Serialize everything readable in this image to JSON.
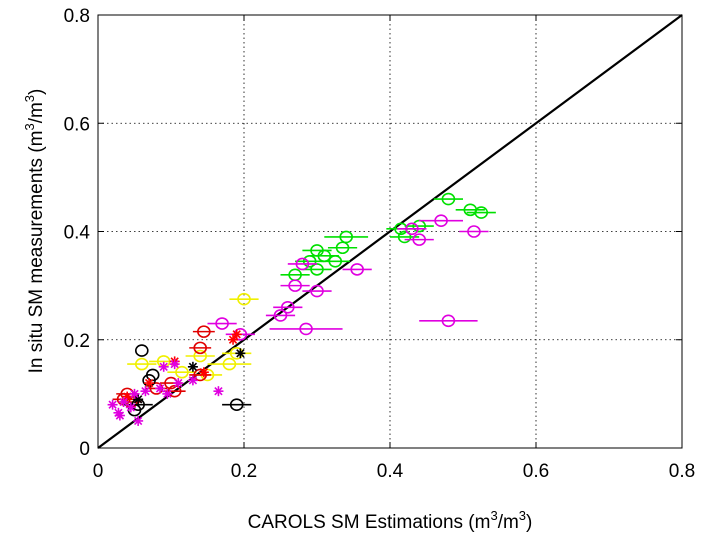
{
  "chart_data": {
    "type": "scatter",
    "title": "",
    "xlabel": {
      "main": "CAROLS SM Estimations (m",
      "sup1": "3",
      "mid": "/m",
      "sup2": "3",
      "end": ")"
    },
    "ylabel": {
      "main": "In situ SM measurements (m",
      "sup1": "3",
      "mid": "/m",
      "sup2": "3",
      "end": ")"
    },
    "xlim": [
      0,
      0.8
    ],
    "ylim": [
      0,
      0.8
    ],
    "xticks": [
      0,
      0.2,
      0.4,
      0.6,
      0.8
    ],
    "yticks": [
      0,
      0.2,
      0.4,
      0.6,
      0.8
    ],
    "xtick_labels": [
      "0",
      "0.2",
      "0.4",
      "0.6",
      "0.8"
    ],
    "ytick_labels": [
      "0",
      "0.2",
      "0.4",
      "0.6",
      "0.8"
    ],
    "grid": true,
    "reference_line": {
      "x": [
        0,
        0.8
      ],
      "y": [
        0,
        0.8
      ],
      "color": "#000000"
    },
    "series": [
      {
        "color": "#00e000",
        "marker": "circle",
        "points": [
          {
            "x": 0.48,
            "y": 0.46,
            "xerr": 0.02
          },
          {
            "x": 0.51,
            "y": 0.44,
            "xerr": 0.02
          },
          {
            "x": 0.525,
            "y": 0.435,
            "xerr": 0.02
          },
          {
            "x": 0.415,
            "y": 0.405,
            "xerr": 0.02
          },
          {
            "x": 0.44,
            "y": 0.41,
            "xerr": 0.02
          },
          {
            "x": 0.42,
            "y": 0.39,
            "xerr": 0.02
          },
          {
            "x": 0.34,
            "y": 0.39,
            "xerr": 0.03
          },
          {
            "x": 0.3,
            "y": 0.365,
            "xerr": 0.02
          },
          {
            "x": 0.335,
            "y": 0.37,
            "xerr": 0.02
          },
          {
            "x": 0.31,
            "y": 0.355,
            "xerr": 0.02
          },
          {
            "x": 0.325,
            "y": 0.345,
            "xerr": 0.02
          },
          {
            "x": 0.29,
            "y": 0.345,
            "xerr": 0.02
          },
          {
            "x": 0.3,
            "y": 0.33,
            "xerr": 0.02
          },
          {
            "x": 0.27,
            "y": 0.32,
            "xerr": 0.02
          }
        ]
      },
      {
        "color": "#e000e0",
        "marker": "circle",
        "points": [
          {
            "x": 0.47,
            "y": 0.42,
            "xerr": 0.03
          },
          {
            "x": 0.43,
            "y": 0.405,
            "xerr": 0.02
          },
          {
            "x": 0.515,
            "y": 0.4,
            "xerr": 0.02
          },
          {
            "x": 0.44,
            "y": 0.385,
            "xerr": 0.02
          },
          {
            "x": 0.355,
            "y": 0.33,
            "xerr": 0.02
          },
          {
            "x": 0.28,
            "y": 0.34,
            "xerr": 0.02
          },
          {
            "x": 0.27,
            "y": 0.3,
            "xerr": 0.02
          },
          {
            "x": 0.3,
            "y": 0.29,
            "xerr": 0.02
          },
          {
            "x": 0.26,
            "y": 0.26,
            "xerr": 0.02
          },
          {
            "x": 0.25,
            "y": 0.245,
            "xerr": 0.02
          },
          {
            "x": 0.285,
            "y": 0.22,
            "xerr": 0.05
          },
          {
            "x": 0.48,
            "y": 0.235,
            "xerr": 0.04
          },
          {
            "x": 0.17,
            "y": 0.23,
            "xerr": 0.02
          },
          {
            "x": 0.195,
            "y": 0.21,
            "xerr": 0.02
          }
        ]
      },
      {
        "color": "#f0f000",
        "marker": "circle",
        "points": [
          {
            "x": 0.2,
            "y": 0.275,
            "xerr": 0.02
          },
          {
            "x": 0.19,
            "y": 0.175,
            "xerr": 0.02
          },
          {
            "x": 0.14,
            "y": 0.17,
            "xerr": 0.02
          },
          {
            "x": 0.18,
            "y": 0.155,
            "xerr": 0.03
          },
          {
            "x": 0.09,
            "y": 0.16,
            "xerr": 0.02
          },
          {
            "x": 0.06,
            "y": 0.155,
            "xerr": 0.02
          },
          {
            "x": 0.115,
            "y": 0.14,
            "xerr": 0.02
          },
          {
            "x": 0.15,
            "y": 0.135,
            "xerr": 0.02
          }
        ]
      },
      {
        "color": "#e00000",
        "marker": "circle",
        "points": [
          {
            "x": 0.145,
            "y": 0.215,
            "xerr": 0.015
          },
          {
            "x": 0.14,
            "y": 0.185,
            "xerr": 0.015
          },
          {
            "x": 0.14,
            "y": 0.135,
            "xerr": 0.015
          },
          {
            "x": 0.1,
            "y": 0.12,
            "xerr": 0.015
          },
          {
            "x": 0.105,
            "y": 0.105,
            "xerr": 0.015
          },
          {
            "x": 0.08,
            "y": 0.11,
            "xerr": 0.015
          },
          {
            "x": 0.04,
            "y": 0.1,
            "xerr": 0.015
          },
          {
            "x": 0.045,
            "y": 0.085,
            "xerr": 0.015
          },
          {
            "x": 0.035,
            "y": 0.09,
            "xerr": 0.015
          }
        ]
      },
      {
        "color": "#000000",
        "marker": "circle",
        "points": [
          {
            "x": 0.06,
            "y": 0.18,
            "xerr": 0.0
          },
          {
            "x": 0.075,
            "y": 0.135,
            "xerr": 0.0
          },
          {
            "x": 0.07,
            "y": 0.125,
            "xerr": 0.0
          },
          {
            "x": 0.055,
            "y": 0.08,
            "xerr": 0.02
          },
          {
            "x": 0.05,
            "y": 0.07,
            "xerr": 0.0
          },
          {
            "x": 0.19,
            "y": 0.08,
            "xerr": 0.02
          }
        ]
      },
      {
        "color": "#ff0000",
        "marker": "star",
        "points": [
          {
            "x": 0.19,
            "y": 0.21
          },
          {
            "x": 0.185,
            "y": 0.2
          },
          {
            "x": 0.145,
            "y": 0.14
          },
          {
            "x": 0.105,
            "y": 0.16
          },
          {
            "x": 0.07,
            "y": 0.12
          },
          {
            "x": 0.04,
            "y": 0.095
          }
        ]
      },
      {
        "color": "#000000",
        "marker": "star",
        "points": [
          {
            "x": 0.195,
            "y": 0.175
          },
          {
            "x": 0.13,
            "y": 0.15
          },
          {
            "x": 0.055,
            "y": 0.09
          }
        ]
      },
      {
        "color": "#e000e0",
        "marker": "star",
        "points": [
          {
            "x": 0.02,
            "y": 0.08
          },
          {
            "x": 0.035,
            "y": 0.085
          },
          {
            "x": 0.028,
            "y": 0.065
          },
          {
            "x": 0.045,
            "y": 0.075
          },
          {
            "x": 0.05,
            "y": 0.1
          },
          {
            "x": 0.065,
            "y": 0.105
          },
          {
            "x": 0.085,
            "y": 0.11
          },
          {
            "x": 0.11,
            "y": 0.12
          },
          {
            "x": 0.13,
            "y": 0.125
          },
          {
            "x": 0.09,
            "y": 0.15
          },
          {
            "x": 0.105,
            "y": 0.155
          },
          {
            "x": 0.165,
            "y": 0.105
          },
          {
            "x": 0.055,
            "y": 0.05
          },
          {
            "x": 0.095,
            "y": 0.1
          },
          {
            "x": 0.03,
            "y": 0.06
          }
        ]
      }
    ]
  }
}
